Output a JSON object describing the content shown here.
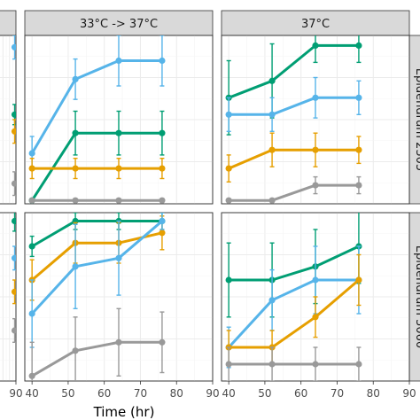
{
  "chart_data": {
    "type": "line",
    "xlabel": "Time (hr)",
    "x_ticks": [
      40,
      50,
      60,
      70,
      80,
      90
    ],
    "x_ticks_cut_panel": [
      90
    ],
    "xlim": [
      38,
      90
    ],
    "ylim": [
      0,
      1
    ],
    "colors": {
      "teal": "#009E73",
      "sky": "#56B4E9",
      "orange": "#E69F00",
      "gray": "#999999"
    },
    "col_strips": [
      "",
      "33°C -> 37°C",
      "37°C"
    ],
    "row_strips": [
      "Epidendrum 2305",
      "Epidendrum 3060"
    ],
    "panels": [
      {
        "col": 0,
        "row": 0,
        "series": [
          {
            "color": "sky",
            "x": [
              88
            ],
            "y": [
              0.93
            ],
            "err": [
              0.07
            ]
          },
          {
            "color": "teal",
            "x": [
              88
            ],
            "y": [
              0.53
            ],
            "err": [
              0.06
            ]
          },
          {
            "color": "orange",
            "x": [
              88
            ],
            "y": [
              0.43
            ],
            "err": [
              0.07
            ]
          },
          {
            "color": "gray",
            "x": [
              88
            ],
            "y": [
              0.12
            ],
            "err": [
              0.07
            ]
          }
        ]
      },
      {
        "col": 1,
        "row": 0,
        "series": [
          {
            "color": "sky",
            "x": [
              40,
              52,
              64,
              76
            ],
            "y": [
              0.3,
              0.74,
              0.85,
              0.85
            ],
            "err": [
              0.1,
              0.12,
              0.15,
              0.15
            ]
          },
          {
            "color": "teal",
            "x": [
              40,
              52,
              64,
              76
            ],
            "y": [
              0.02,
              0.42,
              0.42,
              0.42
            ],
            "err": [
              0.0,
              0.13,
              0.13,
              0.13
            ]
          },
          {
            "color": "orange",
            "x": [
              40,
              52,
              64,
              76
            ],
            "y": [
              0.21,
              0.21,
              0.21,
              0.21
            ],
            "err": [
              0.06,
              0.06,
              0.06,
              0.06
            ]
          },
          {
            "color": "gray",
            "x": [
              40,
              52,
              64,
              76
            ],
            "y": [
              0.02,
              0.02,
              0.02,
              0.02
            ],
            "err": [
              0.0,
              0.0,
              0.0,
              0.0
            ]
          }
        ]
      },
      {
        "col": 2,
        "row": 0,
        "series": [
          {
            "color": "teal",
            "x": [
              40,
              52,
              64,
              76
            ],
            "y": [
              0.63,
              0.73,
              0.94,
              0.94
            ],
            "err": [
              0.22,
              0.22,
              0.1,
              0.1
            ]
          },
          {
            "color": "sky",
            "x": [
              40,
              52,
              64,
              76
            ],
            "y": [
              0.53,
              0.53,
              0.63,
              0.63
            ],
            "err": [
              0.1,
              0.1,
              0.12,
              0.1
            ]
          },
          {
            "color": "orange",
            "x": [
              40,
              52,
              64,
              76
            ],
            "y": [
              0.21,
              0.32,
              0.32,
              0.32
            ],
            "err": [
              0.08,
              0.1,
              0.1,
              0.08
            ]
          },
          {
            "color": "gray",
            "x": [
              40,
              52,
              64,
              76
            ],
            "y": [
              0.02,
              0.02,
              0.11,
              0.11
            ],
            "err": [
              0.0,
              0.0,
              0.05,
              0.05
            ]
          }
        ]
      },
      {
        "col": 0,
        "row": 1,
        "series": [
          {
            "color": "teal",
            "x": [
              88
            ],
            "y": [
              0.95
            ],
            "err": [
              0.06
            ]
          },
          {
            "color": "sky",
            "x": [
              88
            ],
            "y": [
              0.73
            ],
            "err": [
              0.07
            ]
          },
          {
            "color": "orange",
            "x": [
              88
            ],
            "y": [
              0.53
            ],
            "err": [
              0.07
            ]
          },
          {
            "color": "gray",
            "x": [
              88
            ],
            "y": [
              0.3
            ],
            "err": [
              0.07
            ]
          }
        ]
      },
      {
        "col": 1,
        "row": 1,
        "series": [
          {
            "color": "teal",
            "x": [
              40,
              52,
              64,
              76
            ],
            "y": [
              0.8,
              0.95,
              0.95,
              0.95
            ],
            "err": [
              0.06,
              0.05,
              0.05,
              0.05
            ]
          },
          {
            "color": "orange",
            "x": [
              40,
              52,
              64,
              76
            ],
            "y": [
              0.6,
              0.82,
              0.82,
              0.88
            ],
            "err": [
              0.12,
              0.12,
              0.12,
              0.1
            ]
          },
          {
            "color": "sky",
            "x": [
              40,
              52,
              64,
              76
            ],
            "y": [
              0.4,
              0.68,
              0.73,
              0.95
            ],
            "err": [
              0.2,
              0.25,
              0.22,
              0.05
            ]
          },
          {
            "color": "gray",
            "x": [
              40,
              52,
              64,
              76
            ],
            "y": [
              0.03,
              0.18,
              0.23,
              0.23
            ],
            "err": [
              0.2,
              0.2,
              0.2,
              0.18
            ]
          }
        ]
      },
      {
        "col": 2,
        "row": 1,
        "series": [
          {
            "color": "teal",
            "x": [
              40,
              52,
              64,
              76
            ],
            "y": [
              0.6,
              0.6,
              0.68,
              0.8
            ],
            "err": [
              0.22,
              0.22,
              0.22,
              0.22
            ]
          },
          {
            "color": "sky",
            "x": [
              40,
              52,
              64,
              76
            ],
            "y": [
              0.2,
              0.48,
              0.6,
              0.6
            ],
            "err": [
              0.12,
              0.18,
              0.2,
              0.2
            ]
          },
          {
            "color": "orange",
            "x": [
              40,
              52,
              64,
              76
            ],
            "y": [
              0.2,
              0.2,
              0.38,
              0.6
            ],
            "err": [
              0.1,
              0.1,
              0.12,
              0.15
            ]
          },
          {
            "color": "gray",
            "x": [
              40,
              52,
              64,
              76
            ],
            "y": [
              0.1,
              0.1,
              0.1,
              0.1
            ],
            "err": [
              0.1,
              0.1,
              0.1,
              0.1
            ]
          }
        ]
      }
    ]
  }
}
